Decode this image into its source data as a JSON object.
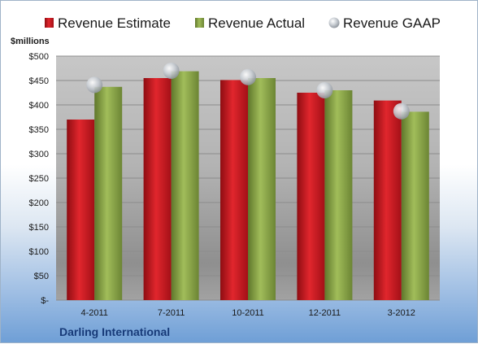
{
  "chart_data": {
    "type": "bar",
    "company": "Darling International",
    "yunit": "$millions",
    "categories": [
      "4-2011",
      "7-2011",
      "10-2011",
      "12-2011",
      "3-2012"
    ],
    "yticks": [
      "$-",
      "$50",
      "$100",
      "$150",
      "$200",
      "$250",
      "$300",
      "$350",
      "$400",
      "$450",
      "$500"
    ],
    "ylim": [
      0,
      500
    ],
    "grid": true,
    "legend_position": "top",
    "series": [
      {
        "name": "Revenue Estimate",
        "kind": "bar",
        "color": "#c8161d",
        "values": [
          370,
          455,
          451,
          425,
          409
        ]
      },
      {
        "name": "Revenue Actual",
        "kind": "bar",
        "color": "#8aa444",
        "values": [
          437,
          469,
          455,
          430,
          386
        ]
      },
      {
        "name": "Revenue GAAP",
        "kind": "marker",
        "color": "#b8bec6",
        "values": [
          441,
          470,
          457,
          430,
          387
        ]
      }
    ]
  }
}
